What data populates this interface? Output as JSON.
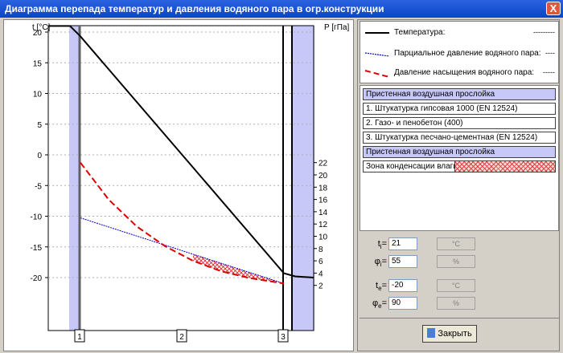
{
  "window": {
    "title": "Диаграмма перепада температур и давления водяного пара в огр.конструкции",
    "close_glyph": "X"
  },
  "chart_data": {
    "type": "line",
    "left_axis": {
      "label": "t [°C]",
      "ticks": [
        20,
        15,
        10,
        5,
        0,
        -5,
        -10,
        -15,
        -20
      ]
    },
    "right_axis": {
      "label": "P [гПа]",
      "ticks": [
        22,
        20,
        18,
        16,
        14,
        12,
        10,
        8,
        6,
        4,
        2
      ]
    },
    "x_markers": [
      "1",
      "2",
      "3"
    ],
    "grid": true,
    "colors": {
      "temperature": "#000000",
      "partial": "#0000cc",
      "saturation": "#dd0000",
      "air_layer": "#c8c8f8",
      "condensation": "#e02020"
    },
    "series": [
      {
        "name": "Температура",
        "x": [
          0,
          27,
          40,
          293,
          307,
          330
        ],
        "values": [
          21,
          21,
          19.3,
          -19.3,
          -19.8,
          -20
        ]
      },
      {
        "name": "Парциальное давление водяного пара",
        "x": [
          40,
          293
        ],
        "values": [
          13,
          2.3
        ]
      },
      {
        "name": "Давление насыщения водяного пара",
        "x": [
          40,
          75,
          110,
          145,
          180,
          215,
          250,
          293
        ],
        "values": [
          22.0,
          16.0,
          11.6,
          8.4,
          6.0,
          4.3,
          3.2,
          2.3
        ]
      }
    ]
  },
  "legend": {
    "items": [
      {
        "label": "Температура:",
        "dash": "---------"
      },
      {
        "label": "Парциальное давление водяного пара:",
        "dash": "----"
      },
      {
        "label": "Давление насыщения водяного пара:",
        "dash": "-----"
      }
    ]
  },
  "layers": [
    {
      "label": "Пристенная воздушная прослойка",
      "kind": "air"
    },
    {
      "label": "1. Штукатурка гипсовая 1000 (EN 12524)",
      "kind": "material"
    },
    {
      "label": "2. Газо- и пенобетон (400)",
      "kind": "material"
    },
    {
      "label": "3. Штукатурка песчано-цементная (EN 12524)",
      "kind": "material"
    },
    {
      "label": "Пристенная воздушная прослойка",
      "kind": "air"
    },
    {
      "label": "Зона конденсации влаги ->",
      "kind": "condensation"
    }
  ],
  "params": {
    "ti": {
      "sym": "t",
      "sub": "i",
      "value": "21",
      "unit": "°C"
    },
    "phii": {
      "sym": "φ",
      "sub": "i",
      "value": "55",
      "unit": "%"
    },
    "te": {
      "sym": "t",
      "sub": "e",
      "value": "-20",
      "unit": "°C"
    },
    "phie": {
      "sym": "φ",
      "sub": "e",
      "value": "90",
      "unit": "%"
    }
  },
  "close_button_label": "Закрыть"
}
